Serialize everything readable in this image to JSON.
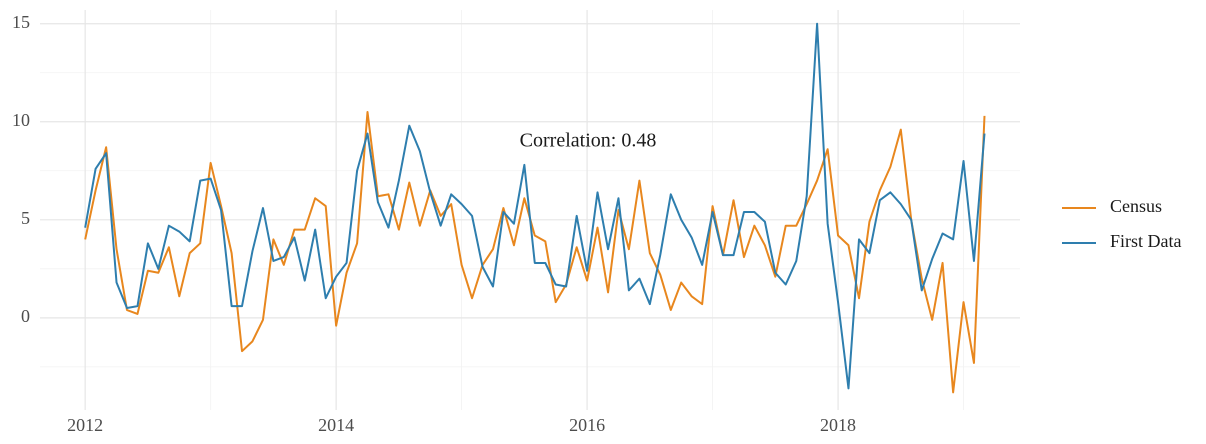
{
  "chart_data": {
    "type": "line",
    "annotation": "Correlation: 0.48",
    "x": [
      2012,
      2012.083,
      2012.167,
      2012.25,
      2012.333,
      2012.417,
      2012.5,
      2012.583,
      2012.667,
      2012.75,
      2012.833,
      2012.917,
      2013,
      2013.083,
      2013.167,
      2013.25,
      2013.333,
      2013.417,
      2013.5,
      2013.583,
      2013.667,
      2013.75,
      2013.833,
      2013.917,
      2014,
      2014.083,
      2014.167,
      2014.25,
      2014.333,
      2014.417,
      2014.5,
      2014.583,
      2014.667,
      2014.75,
      2014.833,
      2014.917,
      2015,
      2015.083,
      2015.167,
      2015.25,
      2015.333,
      2015.417,
      2015.5,
      2015.583,
      2015.667,
      2015.75,
      2015.833,
      2015.917,
      2016,
      2016.083,
      2016.167,
      2016.25,
      2016.333,
      2016.417,
      2016.5,
      2016.583,
      2016.667,
      2016.75,
      2016.833,
      2016.917,
      2017,
      2017.083,
      2017.167,
      2017.25,
      2017.333,
      2017.417,
      2017.5,
      2017.583,
      2017.667,
      2017.75,
      2017.833,
      2017.917,
      2018,
      2018.083,
      2018.167,
      2018.25,
      2018.333,
      2018.417,
      2018.5,
      2018.583,
      2018.667,
      2018.75,
      2018.833,
      2018.917,
      2019,
      2019.083,
      2019.167
    ],
    "series": [
      {
        "name": "Census",
        "color": "#e8871e",
        "values": [
          4.0,
          6.5,
          8.7,
          3.5,
          0.4,
          0.2,
          2.4,
          2.3,
          3.6,
          1.1,
          3.3,
          3.8,
          7.9,
          5.7,
          3.3,
          -1.7,
          -1.2,
          -0.1,
          4.0,
          2.7,
          4.5,
          4.5,
          6.1,
          5.7,
          -0.4,
          2.3,
          3.8,
          10.5,
          6.2,
          6.3,
          4.5,
          6.9,
          4.7,
          6.5,
          5.2,
          5.8,
          2.7,
          1.0,
          2.7,
          3.5,
          5.6,
          3.7,
          6.1,
          4.2,
          3.9,
          0.8,
          1.7,
          3.6,
          1.9,
          4.6,
          1.3,
          5.5,
          3.5,
          7.0,
          3.3,
          2.2,
          0.4,
          1.8,
          1.1,
          0.7,
          5.7,
          3.2,
          6.0,
          3.1,
          4.7,
          3.7,
          2.1,
          4.7,
          4.7,
          5.8,
          7.0,
          8.6,
          4.2,
          3.7,
          1.0,
          4.9,
          6.5,
          7.7,
          9.6,
          5.0,
          2.0,
          -0.1,
          2.8,
          -3.8,
          0.8,
          -2.3,
          10.3
        ]
      },
      {
        "name": "First Data",
        "color": "#2e7eae",
        "values": [
          4.6,
          7.6,
          8.4,
          1.8,
          0.5,
          0.6,
          3.8,
          2.5,
          4.7,
          4.4,
          3.9,
          7.0,
          7.1,
          5.5,
          0.6,
          0.6,
          3.4,
          5.6,
          2.9,
          3.1,
          4.1,
          1.9,
          4.5,
          1.0,
          2.1,
          2.8,
          7.5,
          9.4,
          5.9,
          4.6,
          7.0,
          9.8,
          8.5,
          6.4,
          4.7,
          6.3,
          5.8,
          5.2,
          2.6,
          1.6,
          5.4,
          4.8,
          7.8,
          2.8,
          2.8,
          1.7,
          1.6,
          5.2,
          2.4,
          6.4,
          3.5,
          6.1,
          1.4,
          2.0,
          0.7,
          3.2,
          6.3,
          5.0,
          4.1,
          2.7,
          5.4,
          3.2,
          3.2,
          5.4,
          5.4,
          4.9,
          2.3,
          1.7,
          2.9,
          6.2,
          15.0,
          4.8,
          0.8,
          -3.6,
          4.0,
          3.3,
          6.0,
          6.4,
          5.8,
          5.0,
          1.4,
          3.0,
          4.3,
          4.0,
          8.0,
          2.9,
          9.4
        ]
      }
    ],
    "xlim": [
      2011.64,
      2019.45
    ],
    "xticks": [
      2012,
      2014,
      2016,
      2018
    ],
    "ylim": [
      -4.7,
      15.7
    ],
    "yticks": [
      0,
      5,
      10,
      15
    ],
    "grid": true,
    "legend": "right"
  }
}
